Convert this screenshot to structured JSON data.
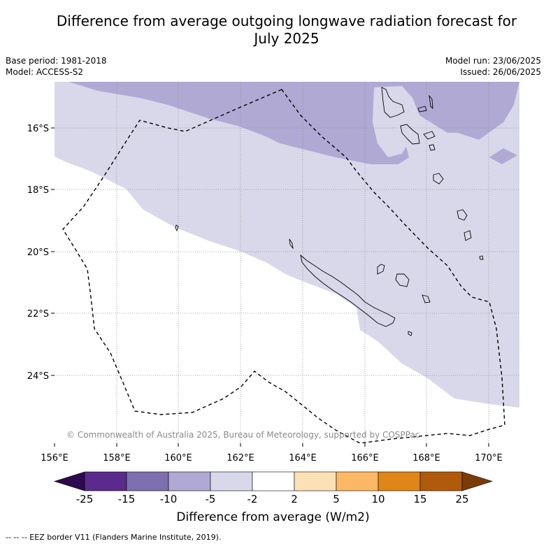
{
  "title_line1": "Difference from average outgoing longwave radiation forecast for",
  "title_line2": "July 2025",
  "meta": {
    "base_period": "Base period: 1981-2018",
    "model": "Model: ACCESS-S2",
    "model_run": "Model run: 23/06/2025",
    "issued": "Issued: 26/06/2025"
  },
  "copyright": "© Commonwealth of Australia 2025, Bureau of Meteorology, supported by COSPPac",
  "x_ticks": [
    "156°E",
    "158°E",
    "160°E",
    "162°E",
    "164°E",
    "166°E",
    "168°E",
    "170°E"
  ],
  "y_ticks": [
    "16°S",
    "18°S",
    "20°S",
    "22°S",
    "24°S"
  ],
  "colorbar": {
    "labels": [
      "-25",
      "-15",
      "-10",
      "-5",
      "-2",
      "2",
      "5",
      "10",
      "15",
      "25"
    ],
    "colors": [
      "#2d0a4e",
      "#5a2a8c",
      "#7e6fae",
      "#b0a9d4",
      "#d9d8ea",
      "#ffffff",
      "#fde0b6",
      "#fcb865",
      "#e08518",
      "#b05a0b",
      "#7a3b08"
    ],
    "title": "Difference from average (W/m2)"
  },
  "footnote": "--  --  -- EEZ border V11 (Flanders Marine Institute, 2019).",
  "colors": {
    "light_lavender": "#d9d8ea",
    "lavender": "#b0a9d4"
  }
}
